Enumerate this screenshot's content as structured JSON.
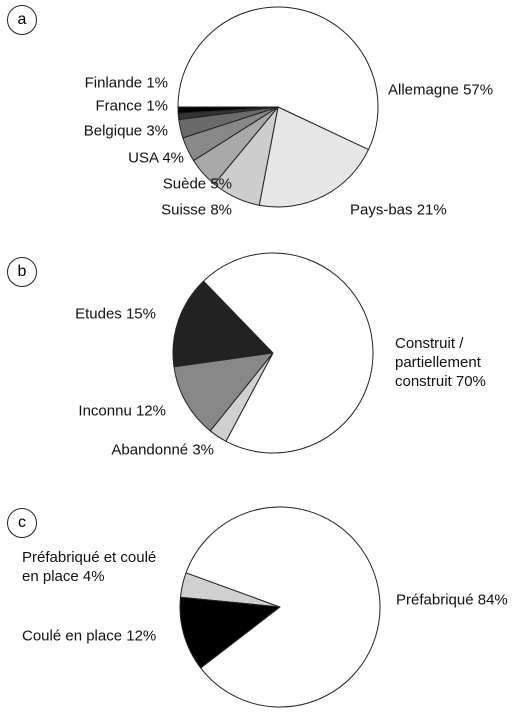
{
  "chart_data": [
    {
      "type": "pie",
      "panel": "a",
      "categories": [
        "Allemagne",
        "Pays-bas",
        "Suisse",
        "Suède",
        "USA",
        "Belgique",
        "France",
        "Finlande"
      ],
      "values": [
        57,
        21,
        8,
        5,
        4,
        3,
        1,
        1
      ],
      "value_labels": [
        "57%",
        "21%",
        "8%",
        "5%",
        "4%",
        "3%",
        "1%",
        "1%"
      ],
      "colors": [
        "#ffffff",
        "#e6e6e6",
        "#cdcdcd",
        "#a9a9a9",
        "#888888",
        "#6a6a6a",
        "#333333",
        "#000000"
      ]
    },
    {
      "type": "pie",
      "panel": "b",
      "categories": [
        "Etudes",
        "Inconnu",
        "Abandonné",
        "Construit / partiellement construit"
      ],
      "values": [
        15,
        12,
        3,
        70
      ],
      "value_labels": [
        "15%",
        "12%",
        "3%",
        "70%"
      ],
      "colors": [
        "#222222",
        "#888888",
        "#d0d0d0",
        "#ffffff"
      ]
    },
    {
      "type": "pie",
      "panel": "c",
      "categories": [
        "Préfabriqué et coulé en place",
        "Coulé en place",
        "Préfabriqué"
      ],
      "values": [
        4,
        12,
        84
      ],
      "value_labels": [
        "4%",
        "12%",
        "84%"
      ],
      "colors": [
        "#d0d0d0",
        "#000000",
        "#ffffff"
      ]
    }
  ]
}
